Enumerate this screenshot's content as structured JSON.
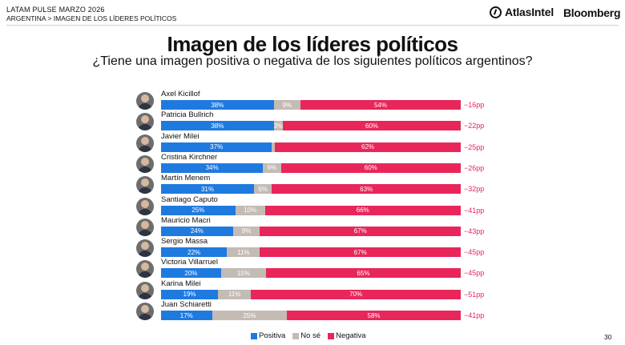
{
  "header": {
    "line1": "LATAM PULSE MARZO 2026",
    "line2": "ARGENTINA > IMAGEN DE LOS LÍDERES POLÍTICOS",
    "logo_atlas": "AtlasIntel",
    "logo_bloomberg": "Bloomberg"
  },
  "page_number": "30",
  "chart_data": {
    "type": "bar",
    "stacked": true,
    "orientation": "horizontal",
    "title": "Imagen de los líderes políticos",
    "subtitle": "¿Tiene una imagen positiva o negativa de los siguientes políticos argentinos?",
    "categories": [
      "Axel Kicillof",
      "Patricia Bullrich",
      "Javier Milei",
      "Cristina Kirchner",
      "Martín Menem",
      "Santiago Caputo",
      "Mauricio Macri",
      "Sergio Massa",
      "Victoria Villarruel",
      "Karina Milei",
      "Juan Schiaretti"
    ],
    "series": [
      {
        "name": "Positiva",
        "color": "#1f7ae0",
        "values": [
          38,
          38,
          37,
          34,
          31,
          25,
          24,
          22,
          20,
          19,
          17
        ]
      },
      {
        "name": "No sé",
        "color": "#c4bbb5",
        "values": [
          9,
          3,
          1,
          6,
          6,
          10,
          9,
          11,
          15,
          11,
          25
        ]
      },
      {
        "name": "Negativa",
        "color": "#e8265a",
        "values": [
          54,
          60,
          62,
          60,
          63,
          66,
          67,
          67,
          65,
          70,
          58
        ]
      }
    ],
    "value_labels": {
      "Positiva": [
        "38%",
        "38%",
        "37%",
        "34%",
        "31%",
        "25%",
        "24%",
        "22%",
        "20%",
        "19%",
        "17%"
      ],
      "No sé": [
        "9%",
        "3%",
        "",
        "6%",
        "6%",
        "10%",
        "9%",
        "11%",
        "15%",
        "11%",
        "25%"
      ],
      "Negativa": [
        "54%",
        "60%",
        "62%",
        "60%",
        "63%",
        "66%",
        "67%",
        "67%",
        "65%",
        "70%",
        "58%"
      ]
    },
    "net": [
      "−16pp",
      "−22pp",
      "−25pp",
      "−26pp",
      "−32pp",
      "−41pp",
      "−43pp",
      "−45pp",
      "−45pp",
      "−51pp",
      "−41pp"
    ],
    "legend_position": "bottom-center"
  }
}
